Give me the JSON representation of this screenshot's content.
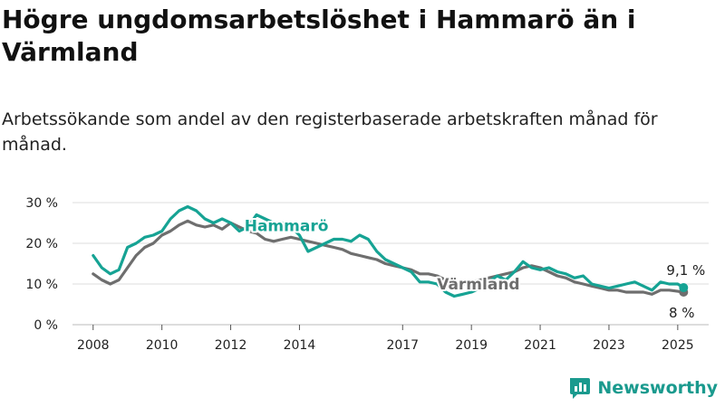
{
  "title": "Högre ungdomsarbetslöshet i Hammarö än i Värmland",
  "subtitle": "Arbetssökande som andel av den registerbaserade arbetskraften månad för månad.",
  "logo_text": "Newsworthy",
  "colors": {
    "hammaro": "#16a394",
    "varmland": "#6e6e6e",
    "grid": "#dddddd",
    "logo": "#1a9a8e"
  },
  "chart_data": {
    "type": "line",
    "ylim": [
      0,
      30
    ],
    "y_ticks": [
      0,
      10,
      20,
      30
    ],
    "y_tick_labels": [
      "0 %",
      "10 %",
      "20 %",
      "30 %"
    ],
    "x_ticks": [
      2008,
      2010,
      2012,
      2014,
      2017,
      2019,
      2021,
      2023,
      2025
    ],
    "x_tick_labels": [
      "2008",
      "2010",
      "2012",
      "2014",
      "2017",
      "2019",
      "2021",
      "2023",
      "2025"
    ],
    "grid": true,
    "series": [
      {
        "name": "Hammarö",
        "color": "#16a394",
        "end_label": "9,1 %",
        "points": [
          [
            2008.0,
            17
          ],
          [
            2008.25,
            14
          ],
          [
            2008.5,
            12.5
          ],
          [
            2008.75,
            13.5
          ],
          [
            2009.0,
            19
          ],
          [
            2009.25,
            20
          ],
          [
            2009.5,
            21.5
          ],
          [
            2009.75,
            22
          ],
          [
            2010.0,
            23
          ],
          [
            2010.25,
            26
          ],
          [
            2010.5,
            28
          ],
          [
            2010.75,
            29
          ],
          [
            2011.0,
            28
          ],
          [
            2011.25,
            26
          ],
          [
            2011.5,
            25
          ],
          [
            2011.75,
            26
          ],
          [
            2012.0,
            25
          ],
          [
            2012.25,
            23
          ],
          [
            2012.5,
            24
          ],
          [
            2012.75,
            27
          ],
          [
            2013.0,
            26
          ],
          [
            2013.25,
            25
          ],
          [
            2013.5,
            25
          ],
          [
            2013.75,
            24
          ],
          [
            2014.0,
            22
          ],
          [
            2014.25,
            18
          ],
          [
            2014.5,
            19
          ],
          [
            2014.75,
            20
          ],
          [
            2015.0,
            21
          ],
          [
            2015.25,
            21
          ],
          [
            2015.5,
            20.5
          ],
          [
            2015.75,
            22
          ],
          [
            2016.0,
            21
          ],
          [
            2016.25,
            18
          ],
          [
            2016.5,
            16
          ],
          [
            2016.75,
            15
          ],
          [
            2017.0,
            14
          ],
          [
            2017.25,
            13
          ],
          [
            2017.5,
            10.5
          ],
          [
            2017.75,
            10.5
          ],
          [
            2018.0,
            10
          ],
          [
            2018.25,
            8
          ],
          [
            2018.5,
            7
          ],
          [
            2018.75,
            7.5
          ],
          [
            2019.0,
            8
          ],
          [
            2019.25,
            9
          ],
          [
            2019.5,
            10.5
          ],
          [
            2019.75,
            12
          ],
          [
            2020.0,
            11
          ],
          [
            2020.25,
            13
          ],
          [
            2020.5,
            15.5
          ],
          [
            2020.75,
            14
          ],
          [
            2021.0,
            13.5
          ],
          [
            2021.25,
            14
          ],
          [
            2021.5,
            13
          ],
          [
            2021.75,
            12.5
          ],
          [
            2022.0,
            11.5
          ],
          [
            2022.25,
            12
          ],
          [
            2022.5,
            10
          ],
          [
            2022.75,
            9.5
          ],
          [
            2023.0,
            9
          ],
          [
            2023.25,
            9.5
          ],
          [
            2023.5,
            10
          ],
          [
            2023.75,
            10.5
          ],
          [
            2024.0,
            9.5
          ],
          [
            2024.25,
            8.5
          ],
          [
            2024.5,
            10.5
          ],
          [
            2024.75,
            10
          ],
          [
            2025.0,
            10
          ],
          [
            2025.17,
            9.1
          ]
        ]
      },
      {
        "name": "Värmland",
        "color": "#6e6e6e",
        "end_label": "8 %",
        "points": [
          [
            2008.0,
            12.5
          ],
          [
            2008.25,
            11
          ],
          [
            2008.5,
            10
          ],
          [
            2008.75,
            11
          ],
          [
            2009.0,
            14
          ],
          [
            2009.25,
            17
          ],
          [
            2009.5,
            19
          ],
          [
            2009.75,
            20
          ],
          [
            2010.0,
            22
          ],
          [
            2010.25,
            23
          ],
          [
            2010.5,
            24.5
          ],
          [
            2010.75,
            25.5
          ],
          [
            2011.0,
            24.5
          ],
          [
            2011.25,
            24
          ],
          [
            2011.5,
            24.5
          ],
          [
            2011.75,
            23.5
          ],
          [
            2012.0,
            25
          ],
          [
            2012.25,
            24
          ],
          [
            2012.5,
            23
          ],
          [
            2012.75,
            22.5
          ],
          [
            2013.0,
            21
          ],
          [
            2013.25,
            20.5
          ],
          [
            2013.5,
            21
          ],
          [
            2013.75,
            21.5
          ],
          [
            2014.0,
            21
          ],
          [
            2014.25,
            20.5
          ],
          [
            2014.5,
            20
          ],
          [
            2014.75,
            19.5
          ],
          [
            2015.0,
            19
          ],
          [
            2015.25,
            18.5
          ],
          [
            2015.5,
            17.5
          ],
          [
            2015.75,
            17
          ],
          [
            2016.0,
            16.5
          ],
          [
            2016.25,
            16
          ],
          [
            2016.5,
            15
          ],
          [
            2016.75,
            14.5
          ],
          [
            2017.0,
            14
          ],
          [
            2017.25,
            13.5
          ],
          [
            2017.5,
            12.5
          ],
          [
            2017.75,
            12.5
          ],
          [
            2018.0,
            12
          ],
          [
            2018.25,
            11
          ],
          [
            2018.5,
            10
          ],
          [
            2018.75,
            10
          ],
          [
            2019.0,
            10.5
          ],
          [
            2019.25,
            11
          ],
          [
            2019.5,
            11.5
          ],
          [
            2019.75,
            12
          ],
          [
            2020.0,
            12.5
          ],
          [
            2020.25,
            13
          ],
          [
            2020.5,
            14
          ],
          [
            2020.75,
            14.5
          ],
          [
            2021.0,
            14
          ],
          [
            2021.25,
            13
          ],
          [
            2021.5,
            12
          ],
          [
            2021.75,
            11.5
          ],
          [
            2022.0,
            10.5
          ],
          [
            2022.25,
            10
          ],
          [
            2022.5,
            9.5
          ],
          [
            2022.75,
            9
          ],
          [
            2023.0,
            8.5
          ],
          [
            2023.25,
            8.5
          ],
          [
            2023.5,
            8
          ],
          [
            2023.75,
            8
          ],
          [
            2024.0,
            8
          ],
          [
            2024.25,
            7.5
          ],
          [
            2024.5,
            8.5
          ],
          [
            2024.75,
            8.5
          ],
          [
            2025.0,
            8.2
          ],
          [
            2025.17,
            8
          ]
        ]
      }
    ],
    "series_label_positions": {
      "Hammarö": [
        2012.4,
        23
      ],
      "Värmland": [
        2018.0,
        8.7
      ]
    }
  }
}
